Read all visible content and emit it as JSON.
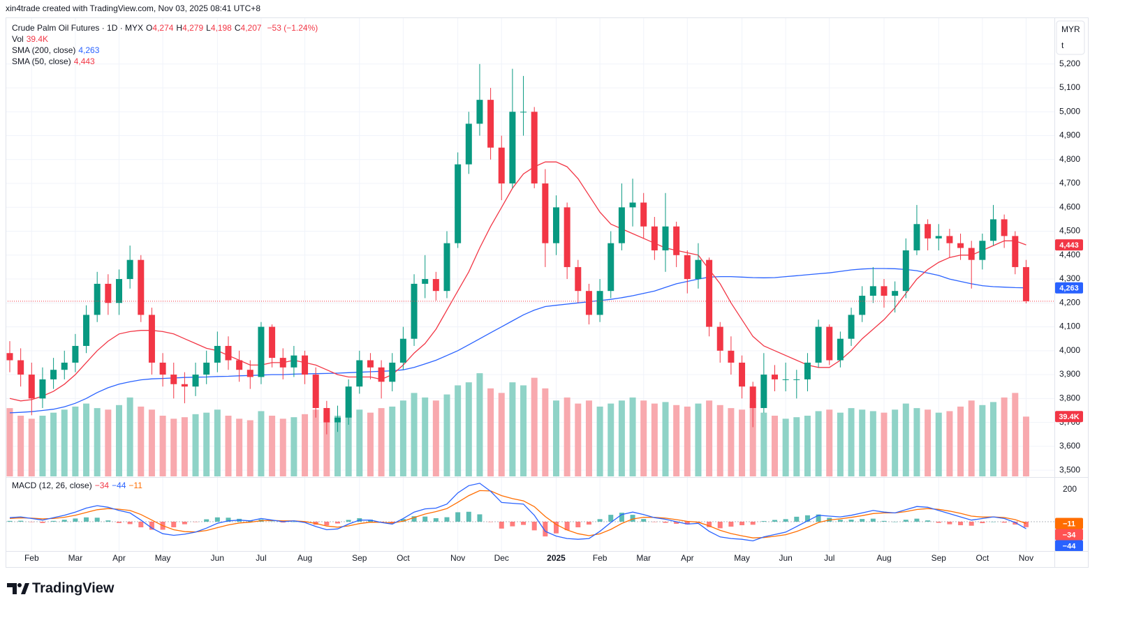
{
  "header": {
    "credit": "xin4trade created with TradingView.com, Nov 03, 2025 08:41 UTC+8"
  },
  "footer": {
    "brand": "TradingView"
  },
  "chart_data": [
    {
      "type": "candlestick",
      "title": "Crude Palm Oil Futures · 1D · MYX",
      "ohlc": [
        {
          "key": "O",
          "value": "4,274"
        },
        {
          "key": "H",
          "value": "4,279"
        },
        {
          "key": "L",
          "value": "4,198"
        },
        {
          "key": "C",
          "value": "4,207"
        }
      ],
      "change": "−53 (−1.24%)",
      "currency": "MYR",
      "unit": "t",
      "grid": true,
      "up_color": "#089981",
      "down_color": "#f23645",
      "ylim": [
        3474,
        5392
      ],
      "yticks": [
        {
          "value": 3500,
          "label": "3,500"
        },
        {
          "value": 3600,
          "label": "3,600"
        },
        {
          "value": 3700,
          "label": "3,700"
        },
        {
          "value": 3800,
          "label": "3,800"
        },
        {
          "value": 3900,
          "label": "3,900"
        },
        {
          "value": 4000,
          "label": "4,000"
        },
        {
          "value": 4100,
          "label": "4,100"
        },
        {
          "value": 4200,
          "label": "4,200"
        },
        {
          "value": 4300,
          "label": "4,300"
        },
        {
          "value": 4400,
          "label": "4,400"
        },
        {
          "value": 4500,
          "label": "4,500"
        },
        {
          "value": 4600,
          "label": "4,600"
        },
        {
          "value": 4700,
          "label": "4,700"
        },
        {
          "value": 4800,
          "label": "4,800"
        },
        {
          "value": 4900,
          "label": "4,900"
        },
        {
          "value": 5000,
          "label": "5,000"
        },
        {
          "value": 5100,
          "label": "5,100"
        },
        {
          "value": 5200,
          "label": "5,200"
        }
      ],
      "categories": [
        null,
        null,
        "Feb",
        null,
        null,
        null,
        "Mar",
        null,
        null,
        null,
        "Apr",
        null,
        null,
        null,
        "May",
        null,
        null,
        null,
        null,
        "Jun",
        null,
        null,
        null,
        "Jul",
        null,
        null,
        null,
        "Aug",
        null,
        null,
        null,
        null,
        "Sep",
        null,
        null,
        null,
        "Oct",
        null,
        null,
        null,
        null,
        "Nov",
        null,
        null,
        null,
        "Dec",
        null,
        null,
        null,
        null,
        "2025",
        null,
        null,
        null,
        "Feb",
        null,
        null,
        null,
        "Mar",
        null,
        null,
        null,
        "Apr",
        null,
        null,
        null,
        null,
        "May",
        null,
        null,
        null,
        "Jun",
        null,
        null,
        null,
        "Jul",
        null,
        null,
        null,
        null,
        "Aug",
        null,
        null,
        null,
        null,
        "Sep",
        null,
        null,
        null,
        "Oct",
        null,
        null,
        null,
        "Nov"
      ],
      "open": [
        3990,
        3960,
        3900,
        3800,
        3880,
        3920,
        3950,
        4020,
        4150,
        4280,
        4200,
        4300,
        4380,
        4150,
        3950,
        3900,
        3860,
        3850,
        3900,
        3950,
        4020,
        3960,
        3920,
        3890,
        4100,
        3970,
        3930,
        3980,
        3900,
        3760,
        3700,
        3720,
        3850,
        3960,
        3930,
        3870,
        3950,
        4050,
        4280,
        4300,
        4250,
        4450,
        4780,
        4950,
        5050,
        4850,
        4700,
        5000,
        5000,
        4700,
        4450,
        4600,
        4350,
        4250,
        4150,
        4250,
        4450,
        4600,
        4620,
        4520,
        4420,
        4520,
        4400,
        4300,
        4380,
        4100,
        4000,
        3950,
        3850,
        3760,
        3900,
        3880,
        3880,
        3880,
        3950,
        4100,
        3960,
        4050,
        4150,
        4230,
        4270,
        4230,
        4250,
        4420,
        4530,
        4470,
        4480,
        4450,
        4430,
        4380,
        4460,
        4550,
        4480,
        4350
      ],
      "high": [
        4040,
        4010,
        3950,
        3930,
        3970,
        4000,
        4070,
        4190,
        4330,
        4320,
        4340,
        4440,
        4400,
        4180,
        3990,
        3950,
        3910,
        3950,
        4000,
        4080,
        4060,
        4000,
        3960,
        4120,
        4110,
        4010,
        4020,
        4000,
        3930,
        3790,
        3770,
        3880,
        4000,
        3990,
        3960,
        3990,
        4100,
        4320,
        4400,
        4330,
        4500,
        4830,
        5000,
        5200,
        5100,
        4900,
        5180,
        5150,
        5020,
        4760,
        4650,
        4620,
        4380,
        4280,
        4300,
        4500,
        4700,
        4720,
        4660,
        4560,
        4660,
        4540,
        4420,
        4450,
        4390,
        4120,
        4060,
        3980,
        3870,
        3990,
        3940,
        3950,
        3920,
        3990,
        4130,
        4110,
        4080,
        4180,
        4270,
        4350,
        4300,
        4290,
        4470,
        4610,
        4550,
        4530,
        4510,
        4490,
        4460,
        4490,
        4610,
        4570,
        4500,
        4380
      ],
      "low": [
        3910,
        3850,
        3730,
        3760,
        3840,
        3880,
        3910,
        3990,
        4120,
        4150,
        4150,
        4260,
        4120,
        3900,
        3850,
        3800,
        3780,
        3810,
        3860,
        3910,
        3920,
        3870,
        3840,
        3860,
        3930,
        3880,
        3890,
        3860,
        3720,
        3650,
        3660,
        3690,
        3820,
        3880,
        3800,
        3830,
        3920,
        4020,
        4220,
        4210,
        4220,
        4430,
        4740,
        4900,
        4800,
        4630,
        4680,
        4900,
        4680,
        4350,
        4400,
        4300,
        4200,
        4110,
        4120,
        4220,
        4420,
        4520,
        4470,
        4380,
        4330,
        4350,
        4240,
        4260,
        4060,
        3950,
        3900,
        3800,
        3680,
        3740,
        3830,
        3830,
        3800,
        3830,
        3930,
        3940,
        3930,
        4020,
        4120,
        4200,
        4180,
        4160,
        4220,
        4400,
        4420,
        4420,
        4390,
        4380,
        4260,
        4340,
        4440,
        4430,
        4320,
        4198
      ],
      "close": [
        3960,
        3900,
        3800,
        3880,
        3920,
        3950,
        4020,
        4150,
        4280,
        4200,
        4300,
        4380,
        4150,
        3950,
        3900,
        3860,
        3850,
        3900,
        3950,
        4020,
        3960,
        3920,
        3890,
        4100,
        3970,
        3930,
        3980,
        3900,
        3760,
        3700,
        3720,
        3850,
        3960,
        3930,
        3870,
        3950,
        4050,
        4280,
        4300,
        4250,
        4450,
        4780,
        4950,
        5050,
        4850,
        4700,
        5000,
        5000,
        4700,
        4450,
        4600,
        4350,
        4250,
        4150,
        4250,
        4450,
        4600,
        4620,
        4520,
        4420,
        4520,
        4400,
        4300,
        4380,
        4100,
        4000,
        3950,
        3850,
        3760,
        3900,
        3880,
        3880,
        3880,
        3950,
        4100,
        3960,
        4050,
        4150,
        4230,
        4270,
        4230,
        4250,
        4420,
        4530,
        4470,
        4480,
        4450,
        4430,
        4380,
        4460,
        4550,
        4480,
        4350,
        4207
      ],
      "volume": {
        "name": "Vol",
        "last_label": "39.4K",
        "ylim": [
          0,
          80000
        ],
        "up_color": "#8fd3c7",
        "down_color": "#f8a9ae",
        "tag_color": "#f23645",
        "values": [
          45000,
          40000,
          38000,
          40000,
          42000,
          44000,
          46000,
          48000,
          45000,
          44000,
          47000,
          52000,
          46000,
          44000,
          40000,
          38000,
          39000,
          41000,
          42000,
          44000,
          40000,
          38000,
          37000,
          43000,
          40000,
          38000,
          39000,
          41000,
          44000,
          43000,
          40000,
          42000,
          44000,
          42000,
          45000,
          46000,
          50000,
          55000,
          52000,
          50000,
          54000,
          60000,
          62000,
          68000,
          58000,
          55000,
          62000,
          60000,
          65000,
          58000,
          50000,
          52000,
          48000,
          50000,
          46000,
          48000,
          50000,
          52000,
          50000,
          48000,
          49000,
          47000,
          46000,
          48000,
          50000,
          47000,
          45000,
          44000,
          48000,
          42000,
          40000,
          38000,
          39000,
          40000,
          43000,
          44000,
          42000,
          45000,
          44000,
          43000,
          42000,
          44000,
          48000,
          45000,
          44000,
          42000,
          43000,
          46000,
          50000,
          47000,
          49000,
          52000,
          55000,
          39400
        ]
      },
      "series": [
        {
          "name": "SMA (200, close)",
          "color": "#2962ff",
          "last_label": "4,263",
          "values": [
            3740,
            3742,
            3745,
            3750,
            3755,
            3765,
            3780,
            3800,
            3825,
            3845,
            3860,
            3870,
            3878,
            3882,
            3884,
            3886,
            3888,
            3889,
            3890,
            3892,
            3893,
            3895,
            3896,
            3898,
            3900,
            3900,
            3902,
            3903,
            3904,
            3905,
            3906,
            3908,
            3910,
            3912,
            3914,
            3916,
            3920,
            3930,
            3945,
            3960,
            3980,
            4000,
            4025,
            4050,
            4075,
            4100,
            4125,
            4150,
            4170,
            4185,
            4190,
            4195,
            4200,
            4205,
            4210,
            4215,
            4222,
            4230,
            4240,
            4250,
            4265,
            4280,
            4290,
            4300,
            4308,
            4310,
            4310,
            4308,
            4306,
            4305,
            4306,
            4310,
            4314,
            4318,
            4322,
            4326,
            4332,
            4338,
            4342,
            4344,
            4344,
            4343,
            4340,
            4335,
            4325,
            4315,
            4300,
            4290,
            4280,
            4272,
            4268,
            4266,
            4264,
            4263
          ]
        },
        {
          "name": "SMA (50, close)",
          "color": "#f23645",
          "last_label": "4,443",
          "values": [
            3800,
            3790,
            3795,
            3810,
            3830,
            3860,
            3900,
            3950,
            4000,
            4040,
            4070,
            4080,
            4085,
            4085,
            4080,
            4070,
            4050,
            4030,
            4010,
            4000,
            3980,
            3960,
            3940,
            3940,
            3950,
            3950,
            3960,
            3950,
            3940,
            3920,
            3900,
            3890,
            3890,
            3890,
            3880,
            3900,
            3940,
            3990,
            4030,
            4090,
            4170,
            4250,
            4330,
            4430,
            4520,
            4600,
            4680,
            4740,
            4770,
            4790,
            4790,
            4770,
            4720,
            4650,
            4580,
            4530,
            4510,
            4490,
            4470,
            4450,
            4430,
            4420,
            4410,
            4400,
            4340,
            4280,
            4200,
            4130,
            4060,
            4020,
            4000,
            3980,
            3960,
            3940,
            3930,
            3930,
            3960,
            4000,
            4050,
            4090,
            4130,
            4180,
            4240,
            4300,
            4340,
            4370,
            4390,
            4400,
            4400,
            4420,
            4440,
            4460,
            4460,
            4443
          ]
        }
      ]
    },
    {
      "type": "macd",
      "title": "MACD (12, 26, close)",
      "ylim": [
        -183,
        270
      ],
      "yticks": [
        200
      ],
      "histogram": {
        "up_color": "#26a69a",
        "down_color": "#ff5252",
        "last_label": "−34",
        "values": [
          5,
          6,
          -2,
          -8,
          5,
          12,
          20,
          27,
          25,
          8,
          -8,
          -15,
          -35,
          -50,
          -50,
          -35,
          -16,
          -1,
          15,
          27,
          25,
          18,
          8,
          14,
          2,
          -5,
          0,
          -6,
          -19,
          -23,
          -11,
          11,
          22,
          13,
          -1,
          -7,
          17,
          34,
          32,
          22,
          28,
          59,
          62,
          46,
          -2,
          -43,
          -29,
          -20,
          -54,
          -92,
          -73,
          -53,
          -35,
          -18,
          16,
          43,
          56,
          43,
          17,
          -2,
          -7,
          -13,
          -17,
          -7,
          -34,
          -41,
          -31,
          -22,
          -19,
          4,
          11,
          16,
          31,
          40,
          45,
          24,
          12,
          13,
          17,
          19,
          5,
          0,
          12,
          19,
          8,
          -7,
          -16,
          -22,
          -25,
          -9,
          0,
          -6,
          -18,
          -34
        ]
      },
      "macd": {
        "color": "#2962ff",
        "last_label": "−44",
        "values": [
          25,
          30,
          20,
          10,
          25,
          40,
          60,
          85,
          100,
          90,
          70,
          55,
          10,
          -40,
          -75,
          -85,
          -78,
          -65,
          -40,
          -10,
          5,
          10,
          5,
          20,
          10,
          0,
          5,
          -5,
          -30,
          -50,
          -45,
          -15,
          10,
          10,
          -5,
          -15,
          20,
          60,
          80,
          85,
          110,
          180,
          225,
          240,
          190,
          120,
          115,
          110,
          40,
          -60,
          -90,
          -105,
          -110,
          -105,
          -60,
          -5,
          45,
          60,
          45,
          25,
          15,
          0,
          -15,
          -10,
          -60,
          -95,
          -105,
          -110,
          -120,
          -95,
          -80,
          -65,
          -30,
          5,
          40,
          35,
          30,
          40,
          55,
          70,
          60,
          55,
          75,
          95,
          90,
          70,
          50,
          30,
          10,
          20,
          30,
          20,
          -5,
          -44
        ]
      },
      "signal": {
        "color": "#ff6d00",
        "last_label": "−11",
        "values": [
          20,
          24,
          22,
          18,
          20,
          28,
          40,
          58,
          75,
          82,
          78,
          70,
          45,
          10,
          -25,
          -50,
          -62,
          -64,
          -55,
          -37,
          -20,
          -8,
          -3,
          6,
          8,
          5,
          5,
          1,
          -11,
          -27,
          -34,
          -26,
          -12,
          -3,
          -4,
          -8,
          3,
          26,
          48,
          63,
          82,
          121,
          163,
          194,
          192,
          163,
          144,
          130,
          94,
          32,
          -17,
          -52,
          -75,
          -87,
          -76,
          -48,
          -11,
          17,
          28,
          27,
          22,
          13,
          2,
          -3,
          -26,
          -54,
          -74,
          -88,
          -101,
          -99,
          -91,
          -81,
          -61,
          -35,
          -5,
          11,
          18,
          27,
          38,
          51,
          55,
          55,
          63,
          76,
          82,
          77,
          66,
          52,
          35,
          29,
          30,
          26,
          13,
          -11
        ]
      }
    }
  ]
}
